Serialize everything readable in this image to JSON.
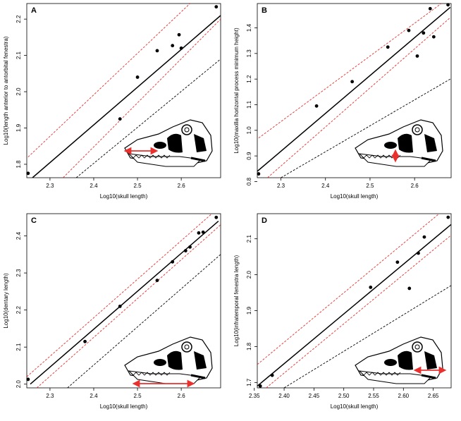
{
  "chart_data": [
    {
      "type": "scatter",
      "title": "A",
      "xlabel": "Log10(skull length)",
      "ylabel": "Log10(length anterior to antorbital fenestra)",
      "xlim": [
        2.247,
        2.69
      ],
      "ylim": [
        1.763,
        2.243
      ],
      "xticks": [
        2.3,
        2.4,
        2.5,
        2.6
      ],
      "yticks": [
        1.8,
        1.9,
        {
          "value": 2.0,
          "label": "2.0"
        },
        2.1,
        2.2
      ],
      "series": [
        {
          "color": "#000000",
          "x": [
            2.25,
            2.46,
            2.5,
            2.545,
            2.58,
            2.595,
            2.6,
            2.68
          ],
          "values": [
            1.775,
            1.925,
            2.04,
            2.113,
            2.127,
            2.157,
            2.12,
            2.234
          ]
        }
      ],
      "lines": [
        {
          "color": "#000000",
          "dash": false,
          "x": [
            2.26,
            2.69
          ],
          "values": [
            1.763,
            2.21
          ]
        },
        {
          "color": "#e8312f",
          "dash": true,
          "x": [
            2.25,
            2.62
          ],
          "values": [
            1.82,
            2.243
          ]
        },
        {
          "color": "#e8312f",
          "dash": true,
          "x": [
            2.33,
            2.69
          ],
          "values": [
            1.763,
            2.2
          ]
        },
        {
          "color": "#000000",
          "dash": true,
          "x": [
            2.36,
            2.69
          ],
          "values": [
            1.763,
            2.09
          ]
        }
      ]
    },
    {
      "type": "scatter",
      "title": "B",
      "xlabel": "Log10(skull length)",
      "ylabel": "Log10(maxilla horizontal process minimum height)",
      "xlim": [
        2.247,
        2.682
      ],
      "ylim": [
        0.815,
        1.495
      ],
      "xticks": [
        2.3,
        2.4,
        2.5,
        2.6
      ],
      "yticks": [
        0.8,
        0.9,
        {
          "value": 1.0,
          "label": "1.0"
        },
        1.1,
        1.2,
        1.3,
        1.4
      ],
      "series": [
        {
          "color": "#000000",
          "x": [
            2.25,
            2.38,
            2.46,
            2.54,
            2.587,
            2.606,
            2.62,
            2.635,
            2.643,
            2.675
          ],
          "values": [
            0.83,
            1.095,
            1.19,
            1.325,
            1.39,
            1.29,
            1.38,
            1.475,
            1.365,
            1.49
          ]
        }
      ],
      "lines": [
        {
          "color": "#000000",
          "dash": false,
          "x": [
            2.247,
            2.68
          ],
          "values": [
            0.84,
            1.48
          ]
        },
        {
          "color": "#e8312f",
          "dash": true,
          "x": [
            2.25,
            2.66
          ],
          "values": [
            0.97,
            1.495
          ]
        },
        {
          "color": "#e8312f",
          "dash": true,
          "x": [
            2.27,
            2.68
          ],
          "values": [
            0.815,
            1.44
          ]
        },
        {
          "color": "#000000",
          "dash": true,
          "x": [
            2.3,
            2.68
          ],
          "values": [
            0.815,
            1.2
          ]
        }
      ]
    },
    {
      "type": "scatter",
      "title": "C",
      "xlabel": "Log10(skull length)",
      "ylabel": "Log10(dentary length)",
      "xlim": [
        2.247,
        2.69
      ],
      "ylim": [
        1.99,
        2.46
      ],
      "xticks": [
        2.3,
        2.4,
        2.5,
        2.6
      ],
      "yticks": [
        {
          "value": 2.0,
          "label": "2.0"
        },
        2.1,
        2.2,
        2.3,
        2.4
      ],
      "series": [
        {
          "color": "#000000",
          "x": [
            2.25,
            2.38,
            2.46,
            2.545,
            2.58,
            2.61,
            2.62,
            2.64,
            2.65,
            2.68
          ],
          "values": [
            2.013,
            2.115,
            2.21,
            2.28,
            2.33,
            2.36,
            2.37,
            2.408,
            2.41,
            2.45
          ]
        }
      ],
      "lines": [
        {
          "color": "#000000",
          "dash": false,
          "x": [
            2.255,
            2.685
          ],
          "values": [
            2.0,
            2.44
          ]
        },
        {
          "color": "#e8312f",
          "dash": true,
          "x": [
            2.247,
            2.67
          ],
          "values": [
            2.02,
            2.46
          ]
        },
        {
          "color": "#e8312f",
          "dash": true,
          "x": [
            2.27,
            2.69
          ],
          "values": [
            1.99,
            2.43
          ]
        },
        {
          "color": "#000000",
          "dash": true,
          "x": [
            2.34,
            2.69
          ],
          "values": [
            1.99,
            2.35
          ]
        }
      ]
    },
    {
      "type": "scatter",
      "title": "D",
      "xlabel": "Log10(skull length)",
      "ylabel": "Log10(infratemporal fenestra length)",
      "xlim": [
        2.355,
        2.68
      ],
      "ylim": [
        1.685,
        2.17
      ],
      "xticks": [
        2.35,
        {
          "value": 2.4,
          "label": "2.40"
        },
        2.45,
        {
          "value": 2.5,
          "label": "2.50"
        },
        2.55,
        {
          "value": 2.6,
          "label": "2.60"
        },
        2.65
      ],
      "yticks": [
        1.7,
        1.8,
        1.9,
        {
          "value": 2.0,
          "label": "2.0"
        },
        2.1
      ],
      "series": [
        {
          "color": "#000000",
          "x": [
            2.36,
            2.38,
            2.545,
            2.59,
            2.61,
            2.625,
            2.635,
            2.675
          ],
          "values": [
            1.69,
            1.72,
            1.965,
            2.035,
            1.962,
            2.06,
            2.105,
            2.16
          ]
        }
      ],
      "lines": [
        {
          "color": "#000000",
          "dash": false,
          "x": [
            2.355,
            2.68
          ],
          "values": [
            1.69,
            2.14
          ]
        },
        {
          "color": "#e8312f",
          "dash": true,
          "x": [
            2.355,
            2.66
          ],
          "values": [
            1.75,
            2.17
          ]
        },
        {
          "color": "#e8312f",
          "dash": true,
          "x": [
            2.37,
            2.68
          ],
          "values": [
            1.685,
            2.11
          ]
        },
        {
          "color": "#000000",
          "dash": true,
          "x": [
            2.4,
            2.68
          ],
          "values": [
            1.685,
            1.97
          ]
        }
      ]
    }
  ]
}
